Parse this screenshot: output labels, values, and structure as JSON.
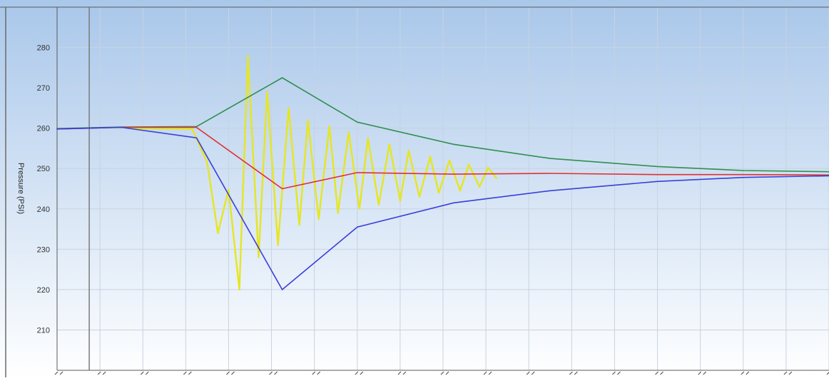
{
  "chart_data": {
    "type": "line",
    "title": "",
    "xlabel": "",
    "ylabel": "Pressure (PSI)",
    "ylim": [
      200,
      290
    ],
    "yticks": [
      210,
      220,
      230,
      240,
      250,
      260,
      270,
      280
    ],
    "xlim": [
      0,
      36
    ],
    "grid": true,
    "legend": "none",
    "x_tick_labels_legible": false,
    "colors": {
      "background_top": "#a9c7ea",
      "background_bottom": "#ffffff",
      "grid": "#c7d3e0",
      "axis": "#5a5a5a",
      "cursor_line": "#7a7a7a"
    },
    "cursor_x": 1.5,
    "series": [
      {
        "color": "#2f8f4e",
        "points": [
          [
            0,
            259.9
          ],
          [
            3,
            260.3
          ],
          [
            6.5,
            260.4
          ],
          [
            10.5,
            272.5
          ],
          [
            14,
            261.5
          ],
          [
            18.5,
            256
          ],
          [
            23,
            252.5
          ],
          [
            28,
            250.5
          ],
          [
            32,
            249.5
          ],
          [
            36,
            249.2
          ]
        ]
      },
      {
        "color": "#e03030",
        "points": [
          [
            0,
            259.8
          ],
          [
            3,
            260.2
          ],
          [
            6.5,
            260.2
          ],
          [
            10.5,
            245
          ],
          [
            14,
            249
          ],
          [
            18.5,
            248.6
          ],
          [
            23,
            248.8
          ],
          [
            28,
            248.5
          ],
          [
            32,
            248.5
          ],
          [
            36,
            248.4
          ]
        ]
      },
      {
        "color": "#3a3fd8",
        "points": [
          [
            0,
            259.8
          ],
          [
            3,
            260.2
          ],
          [
            6.5,
            257.6
          ],
          [
            10.5,
            220
          ],
          [
            14,
            235.5
          ],
          [
            18.5,
            241.5
          ],
          [
            23,
            244.5
          ],
          [
            28,
            246.8
          ],
          [
            32,
            247.8
          ],
          [
            36,
            248.2
          ]
        ]
      },
      {
        "color": "#e6e620",
        "points": [
          [
            3.5,
            260
          ],
          [
            6.3,
            259.8
          ],
          [
            7,
            251.5
          ],
          [
            7.5,
            234
          ],
          [
            8,
            244.8
          ],
          [
            8.5,
            220
          ],
          [
            8.9,
            278
          ],
          [
            9.4,
            228
          ],
          [
            9.8,
            269
          ],
          [
            10.3,
            231
          ],
          [
            10.8,
            265
          ],
          [
            11.3,
            236
          ],
          [
            11.7,
            262
          ],
          [
            12.2,
            237.5
          ],
          [
            12.7,
            260.5
          ],
          [
            13.1,
            239
          ],
          [
            13.6,
            259
          ],
          [
            14.1,
            240
          ],
          [
            14.5,
            257.5
          ],
          [
            15,
            241
          ],
          [
            15.5,
            256
          ],
          [
            16,
            242
          ],
          [
            16.4,
            254.5
          ],
          [
            16.9,
            243
          ],
          [
            17.4,
            253
          ],
          [
            17.8,
            244
          ],
          [
            18.3,
            252
          ],
          [
            18.8,
            244.5
          ],
          [
            19.2,
            251
          ],
          [
            19.7,
            245.5
          ],
          [
            20.1,
            250.2
          ],
          [
            20.5,
            247.6
          ]
        ]
      }
    ]
  }
}
